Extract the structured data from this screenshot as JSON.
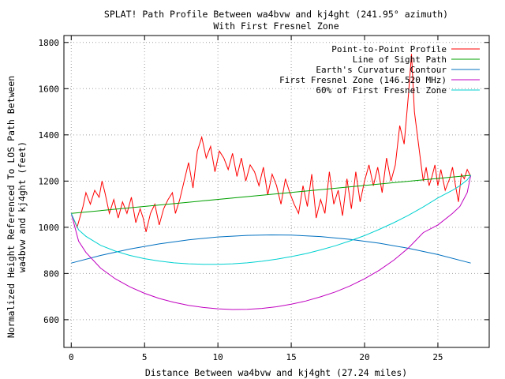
{
  "chart_data": {
    "type": "line",
    "title": "SPLAT! Path Profile Between wa4bvw and kj4ght (241.95° azimuth)",
    "subtitle": "With First Fresnel Zone",
    "xlabel": "Distance Between wa4bvw and kj4ght (27.24 miles)",
    "ylabel_line1": "Normalized Height Referenced To LOS Path Between",
    "ylabel_line2": "wa4bvw and kj4ght (feet)",
    "xlim": [
      -0.5,
      28.5
    ],
    "ylim": [
      480,
      1830
    ],
    "xticks": [
      0,
      5,
      10,
      15,
      20,
      25
    ],
    "yticks": [
      600,
      800,
      1000,
      1200,
      1400,
      1600,
      1800
    ],
    "grid": true,
    "legend_position": "top-right",
    "path_length": 27.24,
    "series": [
      {
        "name": "Point-to-Point Profile",
        "color": "#ff0000",
        "x": [
          0,
          0.4,
          0.8,
          1.0,
          1.3,
          1.6,
          1.9,
          2.1,
          2.3,
          2.6,
          2.9,
          3.2,
          3.5,
          3.8,
          4.1,
          4.4,
          4.7,
          4.9,
          5.1,
          5.4,
          5.7,
          6.0,
          6.3,
          6.6,
          6.9,
          7.1,
          7.4,
          7.7,
          8.0,
          8.3,
          8.6,
          8.9,
          9.2,
          9.5,
          9.8,
          10.1,
          10.4,
          10.7,
          11.0,
          11.3,
          11.6,
          11.9,
          12.2,
          12.5,
          12.8,
          13.1,
          13.4,
          13.7,
          14.0,
          14.3,
          14.6,
          14.9,
          15.2,
          15.5,
          15.8,
          16.1,
          16.4,
          16.7,
          17.0,
          17.3,
          17.6,
          17.9,
          18.2,
          18.5,
          18.8,
          19.1,
          19.4,
          19.7,
          20.0,
          20.3,
          20.6,
          20.9,
          21.2,
          21.5,
          21.8,
          22.1,
          22.4,
          22.7,
          23.0,
          23.2,
          23.4,
          23.6,
          23.8,
          24.0,
          24.2,
          24.4,
          24.6,
          24.8,
          25.0,
          25.2,
          25.5,
          25.8,
          26.0,
          26.2,
          26.4,
          26.6,
          26.8,
          27.0,
          27.24
        ],
        "y": [
          1060,
          1000,
          1090,
          1150,
          1100,
          1160,
          1130,
          1200,
          1150,
          1060,
          1120,
          1040,
          1110,
          1060,
          1130,
          1020,
          1080,
          1040,
          980,
          1060,
          1100,
          1010,
          1080,
          1120,
          1150,
          1060,
          1120,
          1200,
          1280,
          1170,
          1330,
          1390,
          1300,
          1350,
          1240,
          1330,
          1300,
          1250,
          1320,
          1220,
          1300,
          1200,
          1270,
          1240,
          1180,
          1260,
          1140,
          1230,
          1180,
          1100,
          1210,
          1150,
          1100,
          1060,
          1180,
          1090,
          1230,
          1040,
          1120,
          1060,
          1240,
          1100,
          1160,
          1050,
          1210,
          1080,
          1240,
          1110,
          1200,
          1270,
          1180,
          1260,
          1150,
          1300,
          1200,
          1270,
          1440,
          1360,
          1580,
          1750,
          1500,
          1400,
          1300,
          1200,
          1260,
          1180,
          1220,
          1270,
          1180,
          1250,
          1160,
          1210,
          1260,
          1180,
          1110,
          1230,
          1210,
          1250,
          1220
        ]
      },
      {
        "name": "Line of Sight Path",
        "color": "#00a000",
        "x": [
          0,
          27.24
        ],
        "y": [
          1060,
          1225
        ]
      },
      {
        "name": "Earth's Curvature Contour",
        "color": "#0070c0",
        "x": [
          0,
          2,
          4,
          6,
          8,
          10,
          12,
          13.62,
          15,
          17,
          19,
          21,
          23,
          25,
          27.24
        ],
        "y": [
          845,
          878,
          906,
          928,
          946,
          958,
          965,
          967,
          966,
          960,
          948,
          931,
          909,
          882,
          845
        ]
      },
      {
        "name": "First Fresnel Zone (146.520 MHz)",
        "color": "#c000c0",
        "x": [
          0,
          0.5,
          1,
          2,
          3,
          4,
          5,
          6,
          7,
          8,
          9,
          10,
          11,
          12,
          13,
          14,
          15,
          16,
          17,
          18,
          19,
          20,
          21,
          22,
          23,
          24,
          25,
          26,
          26.5,
          27,
          27.24
        ],
        "y": [
          1060,
          940,
          891,
          823,
          777,
          742,
          714,
          692,
          675,
          662,
          653,
          647,
          644,
          645,
          649,
          656,
          667,
          681,
          699,
          720,
          746,
          777,
          814,
          858,
          911,
          977,
          1010,
          1060,
          1090,
          1150,
          1225
        ]
      },
      {
        "name": "60% of First Fresnel Zone",
        "color": "#00d0d0",
        "x": [
          0,
          0.5,
          1,
          2,
          3,
          4,
          5,
          6,
          7,
          8,
          9,
          10,
          11,
          12,
          13,
          14,
          15,
          16,
          17,
          18,
          19,
          20,
          21,
          22,
          23,
          24,
          25,
          26,
          26.5,
          27,
          27.24
        ],
        "y": [
          1060,
          989,
          961,
          922,
          897,
          878,
          864,
          854,
          846,
          842,
          840,
          840,
          842,
          846,
          853,
          862,
          873,
          886,
          902,
          920,
          941,
          964,
          991,
          1020,
          1052,
          1088,
          1127,
          1160,
          1180,
          1205,
          1225
        ]
      }
    ]
  }
}
